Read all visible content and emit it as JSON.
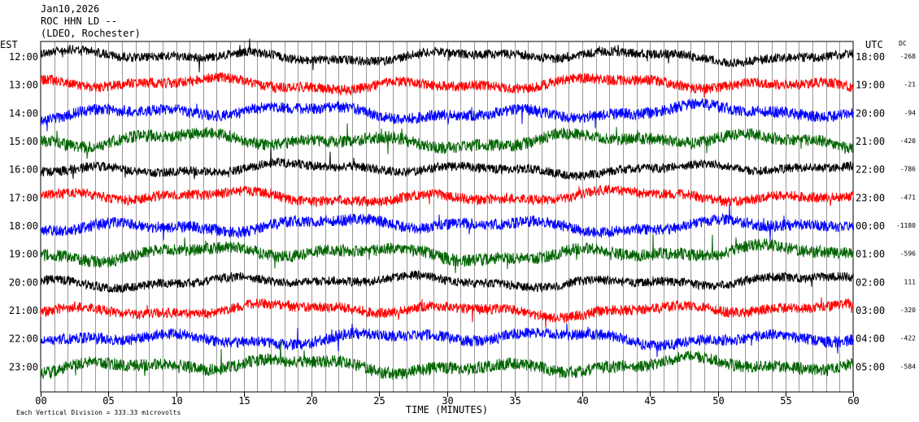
{
  "header": {
    "date": "Jan10,2026",
    "station": "ROC HHN LD --",
    "network": "(LDEO, Rochester)"
  },
  "chart_data": {
    "type": "line",
    "title": "",
    "left_axis_label": "EST",
    "right_axis_label": "UTC",
    "dc_label": "DC",
    "xlabel": "TIME (MINUTES)",
    "xlim": [
      0,
      60
    ],
    "x_ticks": [
      0,
      5,
      10,
      15,
      20,
      25,
      30,
      35,
      40,
      45,
      50,
      55,
      60
    ],
    "x_tick_labels": [
      "00",
      "05",
      "10",
      "15",
      "20",
      "25",
      "30",
      "35",
      "40",
      "45",
      "50",
      "55",
      "60"
    ],
    "grid": true,
    "scale_note": "Each Vertical Division =  333.33 microvolts",
    "series": [
      {
        "est": "12:00",
        "utc": "18:00",
        "dc": "-268",
        "color": "#000000"
      },
      {
        "est": "13:00",
        "utc": "19:00",
        "dc": "-21",
        "color": "#ff0000"
      },
      {
        "est": "14:00",
        "utc": "20:00",
        "dc": "-94",
        "color": "#0000ff"
      },
      {
        "est": "15:00",
        "utc": "21:00",
        "dc": "-420",
        "color": "#006400"
      },
      {
        "est": "16:00",
        "utc": "22:00",
        "dc": "-786",
        "color": "#000000"
      },
      {
        "est": "17:00",
        "utc": "23:00",
        "dc": "-471",
        "color": "#ff0000"
      },
      {
        "est": "18:00",
        "utc": "00:00",
        "dc": "-1180",
        "color": "#0000ff"
      },
      {
        "est": "19:00",
        "utc": "01:00",
        "dc": "-596",
        "color": "#006400"
      },
      {
        "est": "20:00",
        "utc": "02:00",
        "dc": "111",
        "color": "#000000"
      },
      {
        "est": "21:00",
        "utc": "03:00",
        "dc": "-320",
        "color": "#ff0000"
      },
      {
        "est": "22:00",
        "utc": "04:00",
        "dc": "-422",
        "color": "#0000ff"
      },
      {
        "est": "23:00",
        "utc": "05:00",
        "dc": "-584",
        "color": "#006400"
      }
    ]
  }
}
